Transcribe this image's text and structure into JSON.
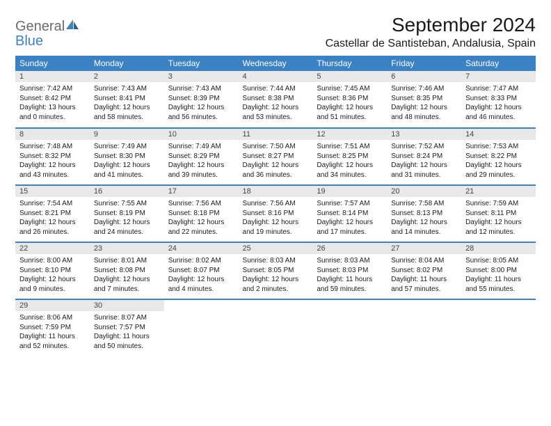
{
  "logo": {
    "general": "General",
    "blue": "Blue"
  },
  "title": "September 2024",
  "location": "Castellar de Santisteban, Andalusia, Spain",
  "colors": {
    "header_bg": "#3b82c4",
    "header_text": "#ffffff",
    "daynum_bg": "#e8e8e8",
    "border": "#3b82c4",
    "text": "#1a1a1a",
    "logo_gray": "#6b6b6b",
    "logo_blue": "#3b82c4"
  },
  "weekdays": [
    "Sunday",
    "Monday",
    "Tuesday",
    "Wednesday",
    "Thursday",
    "Friday",
    "Saturday"
  ],
  "days": [
    {
      "n": "1",
      "sunrise": "7:42 AM",
      "sunset": "8:42 PM",
      "daylight": "13 hours and 0 minutes."
    },
    {
      "n": "2",
      "sunrise": "7:43 AM",
      "sunset": "8:41 PM",
      "daylight": "12 hours and 58 minutes."
    },
    {
      "n": "3",
      "sunrise": "7:43 AM",
      "sunset": "8:39 PM",
      "daylight": "12 hours and 56 minutes."
    },
    {
      "n": "4",
      "sunrise": "7:44 AM",
      "sunset": "8:38 PM",
      "daylight": "12 hours and 53 minutes."
    },
    {
      "n": "5",
      "sunrise": "7:45 AM",
      "sunset": "8:36 PM",
      "daylight": "12 hours and 51 minutes."
    },
    {
      "n": "6",
      "sunrise": "7:46 AM",
      "sunset": "8:35 PM",
      "daylight": "12 hours and 48 minutes."
    },
    {
      "n": "7",
      "sunrise": "7:47 AM",
      "sunset": "8:33 PM",
      "daylight": "12 hours and 46 minutes."
    },
    {
      "n": "8",
      "sunrise": "7:48 AM",
      "sunset": "8:32 PM",
      "daylight": "12 hours and 43 minutes."
    },
    {
      "n": "9",
      "sunrise": "7:49 AM",
      "sunset": "8:30 PM",
      "daylight": "12 hours and 41 minutes."
    },
    {
      "n": "10",
      "sunrise": "7:49 AM",
      "sunset": "8:29 PM",
      "daylight": "12 hours and 39 minutes."
    },
    {
      "n": "11",
      "sunrise": "7:50 AM",
      "sunset": "8:27 PM",
      "daylight": "12 hours and 36 minutes."
    },
    {
      "n": "12",
      "sunrise": "7:51 AM",
      "sunset": "8:25 PM",
      "daylight": "12 hours and 34 minutes."
    },
    {
      "n": "13",
      "sunrise": "7:52 AM",
      "sunset": "8:24 PM",
      "daylight": "12 hours and 31 minutes."
    },
    {
      "n": "14",
      "sunrise": "7:53 AM",
      "sunset": "8:22 PM",
      "daylight": "12 hours and 29 minutes."
    },
    {
      "n": "15",
      "sunrise": "7:54 AM",
      "sunset": "8:21 PM",
      "daylight": "12 hours and 26 minutes."
    },
    {
      "n": "16",
      "sunrise": "7:55 AM",
      "sunset": "8:19 PM",
      "daylight": "12 hours and 24 minutes."
    },
    {
      "n": "17",
      "sunrise": "7:56 AM",
      "sunset": "8:18 PM",
      "daylight": "12 hours and 22 minutes."
    },
    {
      "n": "18",
      "sunrise": "7:56 AM",
      "sunset": "8:16 PM",
      "daylight": "12 hours and 19 minutes."
    },
    {
      "n": "19",
      "sunrise": "7:57 AM",
      "sunset": "8:14 PM",
      "daylight": "12 hours and 17 minutes."
    },
    {
      "n": "20",
      "sunrise": "7:58 AM",
      "sunset": "8:13 PM",
      "daylight": "12 hours and 14 minutes."
    },
    {
      "n": "21",
      "sunrise": "7:59 AM",
      "sunset": "8:11 PM",
      "daylight": "12 hours and 12 minutes."
    },
    {
      "n": "22",
      "sunrise": "8:00 AM",
      "sunset": "8:10 PM",
      "daylight": "12 hours and 9 minutes."
    },
    {
      "n": "23",
      "sunrise": "8:01 AM",
      "sunset": "8:08 PM",
      "daylight": "12 hours and 7 minutes."
    },
    {
      "n": "24",
      "sunrise": "8:02 AM",
      "sunset": "8:07 PM",
      "daylight": "12 hours and 4 minutes."
    },
    {
      "n": "25",
      "sunrise": "8:03 AM",
      "sunset": "8:05 PM",
      "daylight": "12 hours and 2 minutes."
    },
    {
      "n": "26",
      "sunrise": "8:03 AM",
      "sunset": "8:03 PM",
      "daylight": "11 hours and 59 minutes."
    },
    {
      "n": "27",
      "sunrise": "8:04 AM",
      "sunset": "8:02 PM",
      "daylight": "11 hours and 57 minutes."
    },
    {
      "n": "28",
      "sunrise": "8:05 AM",
      "sunset": "8:00 PM",
      "daylight": "11 hours and 55 minutes."
    },
    {
      "n": "29",
      "sunrise": "8:06 AM",
      "sunset": "7:59 PM",
      "daylight": "11 hours and 52 minutes."
    },
    {
      "n": "30",
      "sunrise": "8:07 AM",
      "sunset": "7:57 PM",
      "daylight": "11 hours and 50 minutes."
    }
  ],
  "labels": {
    "sunrise": "Sunrise: ",
    "sunset": "Sunset: ",
    "daylight": "Daylight: "
  }
}
